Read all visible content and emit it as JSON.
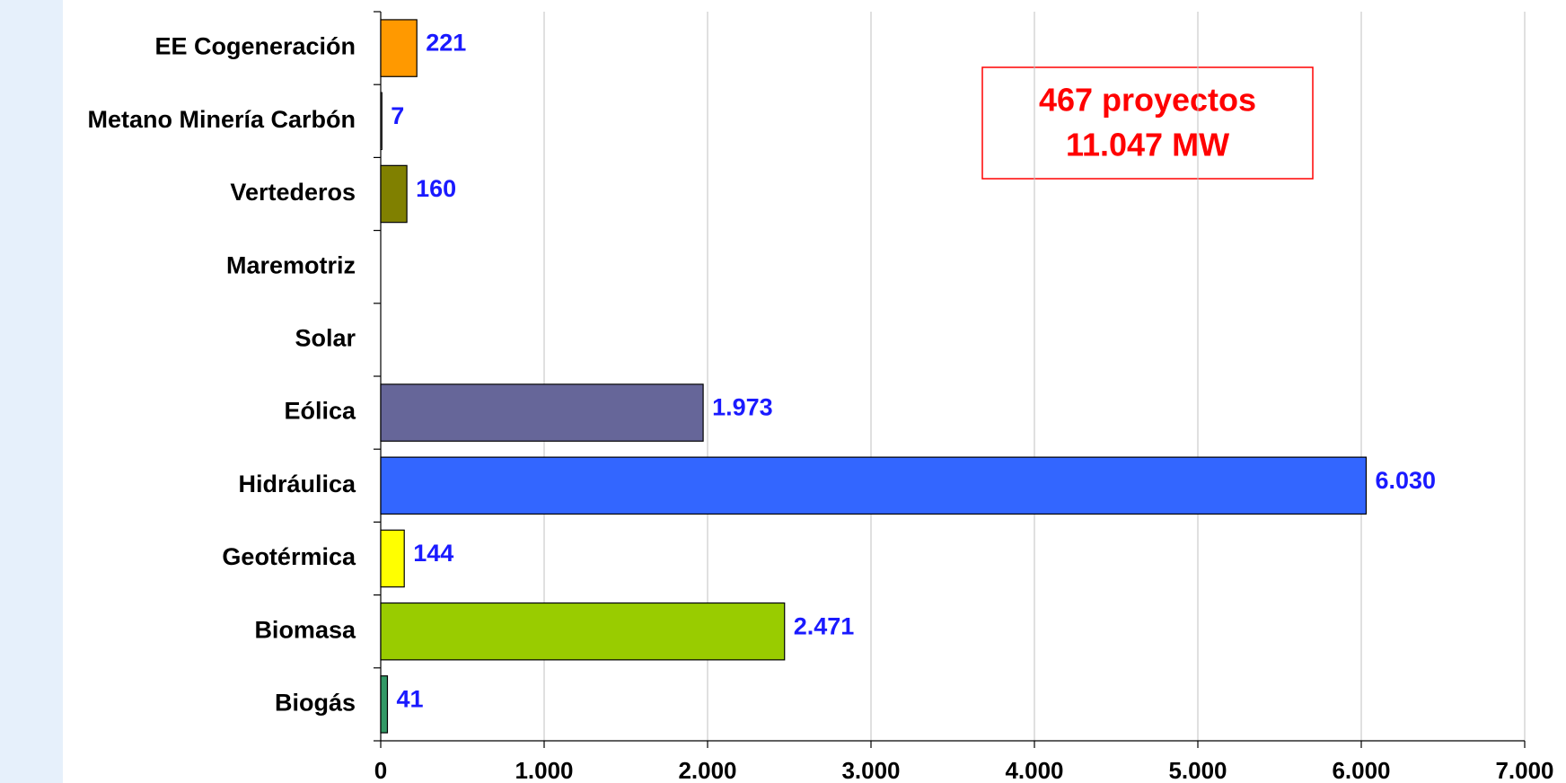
{
  "chart_data": {
    "type": "bar",
    "orientation": "horizontal",
    "categories": [
      "EE Cogeneración",
      "Metano Minería Carbón",
      "Vertederos",
      "Maremotriz",
      "Solar",
      "Eólica",
      "Hidráulica",
      "Geotérmica",
      "Biomasa",
      "Biogás"
    ],
    "values": [
      221,
      7,
      160,
      null,
      null,
      1973,
      6030,
      144,
      2471,
      41
    ],
    "value_labels": [
      "221",
      "7",
      "160",
      null,
      null,
      "1.973",
      "6.030",
      "144",
      "2.471",
      "41"
    ],
    "colors": [
      "#ff9900",
      "#ffffff",
      "#808000",
      "#ffffff",
      "#ffffff",
      "#666699",
      "#3366ff",
      "#ffff00",
      "#99cc00",
      "#339966"
    ],
    "xlim": [
      0,
      7000
    ],
    "xticks": [
      0,
      {
        "value": 1000,
        "label": "1.000"
      },
      {
        "value": 2000,
        "label": "2.000"
      },
      {
        "value": 3000,
        "label": "3.000"
      },
      {
        "value": 4000,
        "label": "4.000"
      },
      {
        "value": 5000,
        "label": "5.000"
      },
      {
        "value": 6000,
        "label": "6.000"
      },
      {
        "value": 7000,
        "label": "7.000"
      }
    ],
    "grid": true,
    "annotation": [
      "467 proyectos",
      "11.047 MW"
    ]
  }
}
